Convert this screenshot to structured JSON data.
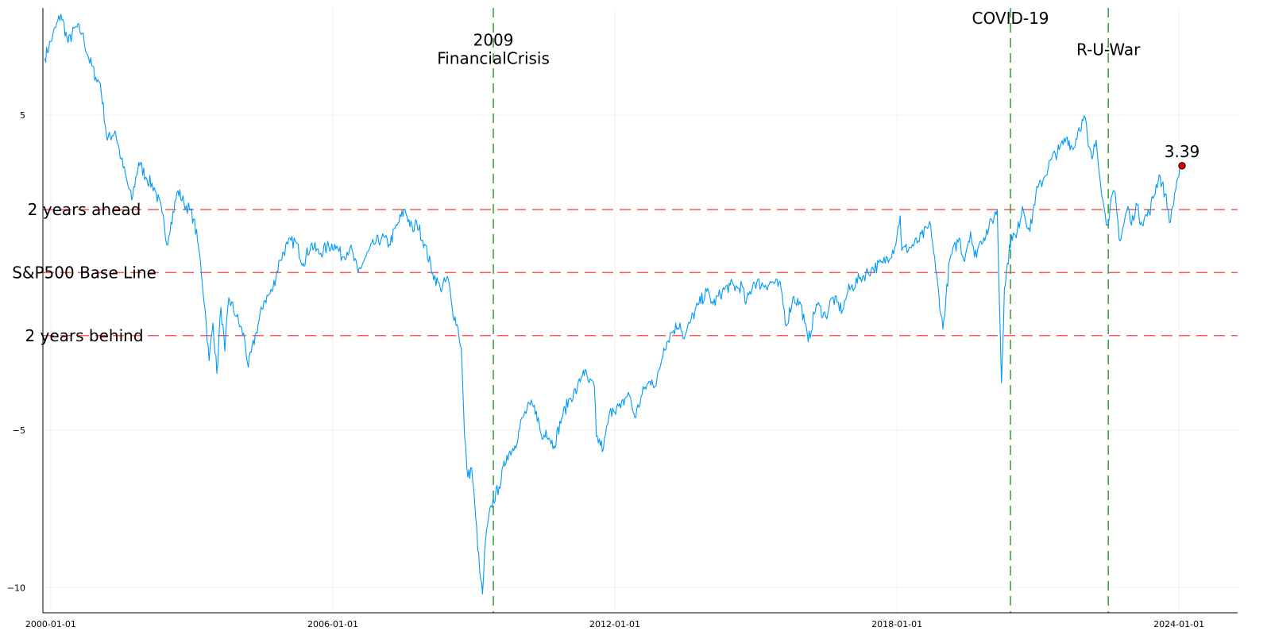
{
  "chart_data": {
    "type": "line",
    "title": "",
    "xlabel": "",
    "ylabel": "",
    "grid": true,
    "legend": "none",
    "xlim": [
      "1999-11-01",
      "2025-04-01"
    ],
    "ylim": [
      -10.8,
      8.4
    ],
    "x_ticks": [
      "2000-01-01",
      "2006-01-01",
      "2012-01-01",
      "2018-01-01",
      "2024-01-01"
    ],
    "y_ticks": [
      {
        "value": 5,
        "label": "5"
      },
      {
        "value": -5,
        "label": "−5"
      },
      {
        "value": -10,
        "label": "−10"
      }
    ],
    "series": [
      {
        "color": "#009af9",
        "points": [
          [
            "1999-11-15",
            6.8
          ],
          [
            "2000-01-15",
            7.5
          ],
          [
            "2000-03-20",
            8.2
          ],
          [
            "2000-05-15",
            7.3
          ],
          [
            "2000-07-15",
            7.8
          ],
          [
            "2000-09-01",
            7.6
          ],
          [
            "2000-10-15",
            6.9
          ],
          [
            "2000-12-15",
            6.2
          ],
          [
            "2001-01-20",
            6.0
          ],
          [
            "2001-03-15",
            4.2
          ],
          [
            "2001-05-15",
            4.5
          ],
          [
            "2001-07-01",
            3.6
          ],
          [
            "2001-09-21",
            2.3
          ],
          [
            "2001-11-15",
            3.5
          ],
          [
            "2002-01-15",
            3.0
          ],
          [
            "2002-03-15",
            2.7
          ],
          [
            "2002-05-15",
            1.9
          ],
          [
            "2002-06-20",
            0.9
          ],
          [
            "2002-07-23",
            1.6
          ],
          [
            "2002-09-15",
            2.6
          ],
          [
            "2002-11-01",
            2.2
          ],
          [
            "2002-12-15",
            2.0
          ],
          [
            "2003-01-15",
            1.7
          ],
          [
            "2003-02-15",
            1.0
          ],
          [
            "2003-03-10",
            0.3
          ],
          [
            "2003-04-15",
            -1.2
          ],
          [
            "2003-05-15",
            -2.8
          ],
          [
            "2003-06-15",
            -1.6
          ],
          [
            "2003-07-15",
            -3.2
          ],
          [
            "2003-08-15",
            -1.1
          ],
          [
            "2003-09-15",
            -2.5
          ],
          [
            "2003-10-15",
            -0.8
          ],
          [
            "2003-12-15",
            -1.4
          ],
          [
            "2004-02-15",
            -2.1
          ],
          [
            "2004-03-15",
            -3.0
          ],
          [
            "2004-05-15",
            -1.9
          ],
          [
            "2004-07-15",
            -0.9
          ],
          [
            "2004-09-15",
            -0.6
          ],
          [
            "2004-11-15",
            0.4
          ],
          [
            "2005-01-15",
            0.9
          ],
          [
            "2005-03-15",
            1.0
          ],
          [
            "2005-05-15",
            0.3
          ],
          [
            "2005-07-15",
            0.9
          ],
          [
            "2005-09-15",
            0.6
          ],
          [
            "2005-11-15",
            0.8
          ],
          [
            "2006-01-15",
            0.9
          ],
          [
            "2006-03-15",
            0.5
          ],
          [
            "2006-05-15",
            0.8
          ],
          [
            "2006-07-15",
            0.0
          ],
          [
            "2006-09-15",
            0.5
          ],
          [
            "2006-11-15",
            0.9
          ],
          [
            "2007-01-15",
            1.1
          ],
          [
            "2007-03-15",
            0.9
          ],
          [
            "2007-05-15",
            1.5
          ],
          [
            "2007-07-15",
            2.0
          ],
          [
            "2007-09-15",
            1.3
          ],
          [
            "2007-10-15",
            1.6
          ],
          [
            "2007-12-15",
            0.9
          ],
          [
            "2008-02-15",
            0.0
          ],
          [
            "2008-04-15",
            -0.5
          ],
          [
            "2008-06-15",
            -0.2
          ],
          [
            "2008-07-15",
            -1.1
          ],
          [
            "2008-09-01",
            -1.8
          ],
          [
            "2008-09-25",
            -2.4
          ],
          [
            "2008-10-20",
            -5.2
          ],
          [
            "2008-11-15",
            -6.5
          ],
          [
            "2008-12-15",
            -6.2
          ],
          [
            "2009-01-15",
            -7.8
          ],
          [
            "2009-02-15",
            -9.5
          ],
          [
            "2009-03-09",
            -10.2
          ],
          [
            "2009-04-01",
            -8.5
          ],
          [
            "2009-05-15",
            -7.4
          ],
          [
            "2009-07-15",
            -6.8
          ],
          [
            "2009-09-15",
            -5.8
          ],
          [
            "2009-11-15",
            -5.5
          ],
          [
            "2010-01-15",
            -4.6
          ],
          [
            "2010-03-15",
            -4.2
          ],
          [
            "2010-05-01",
            -4.4
          ],
          [
            "2010-06-15",
            -5.3
          ],
          [
            "2010-07-15",
            -5.0
          ],
          [
            "2010-09-15",
            -5.5
          ],
          [
            "2010-11-15",
            -4.6
          ],
          [
            "2011-01-15",
            -4.0
          ],
          [
            "2011-03-15",
            -3.7
          ],
          [
            "2011-05-01",
            -3.1
          ],
          [
            "2011-06-15",
            -3.5
          ],
          [
            "2011-07-25",
            -3.6
          ],
          [
            "2011-08-10",
            -5.2
          ],
          [
            "2011-10-04",
            -5.6
          ],
          [
            "2011-11-15",
            -4.6
          ],
          [
            "2011-12-15",
            -4.3
          ],
          [
            "2012-02-15",
            -4.3
          ],
          [
            "2012-04-15",
            -3.8
          ],
          [
            "2012-06-04",
            -4.6
          ],
          [
            "2012-08-15",
            -3.7
          ],
          [
            "2012-10-15",
            -3.4
          ],
          [
            "2012-11-15",
            -3.6
          ],
          [
            "2013-01-15",
            -2.4
          ],
          [
            "2013-03-15",
            -1.9
          ],
          [
            "2013-05-21",
            -1.6
          ],
          [
            "2013-06-24",
            -2.1
          ],
          [
            "2013-08-15",
            -1.5
          ],
          [
            "2013-10-15",
            -1.0
          ],
          [
            "2013-12-15",
            -0.6
          ],
          [
            "2014-02-03",
            -1.0
          ],
          [
            "2014-04-15",
            -0.6
          ],
          [
            "2014-06-15",
            -0.4
          ],
          [
            "2014-08-15",
            -0.5
          ],
          [
            "2014-09-15",
            -0.4
          ],
          [
            "2014-10-15",
            -1.0
          ],
          [
            "2014-12-15",
            -0.3
          ],
          [
            "2015-03-15",
            -0.4
          ],
          [
            "2015-05-15",
            -0.3
          ],
          [
            "2015-07-15",
            -0.5
          ],
          [
            "2015-08-25",
            -1.7
          ],
          [
            "2015-10-15",
            -0.8
          ],
          [
            "2015-12-15",
            -1.0
          ],
          [
            "2016-01-15",
            -1.6
          ],
          [
            "2016-02-11",
            -2.2
          ],
          [
            "2016-04-15",
            -1.0
          ],
          [
            "2016-06-27",
            -1.4
          ],
          [
            "2016-08-15",
            -0.8
          ],
          [
            "2016-11-04",
            -1.2
          ],
          [
            "2016-12-15",
            -0.6
          ],
          [
            "2017-03-15",
            -0.2
          ],
          [
            "2017-06-15",
            0.1
          ],
          [
            "2017-09-15",
            0.3
          ],
          [
            "2017-12-15",
            0.8
          ],
          [
            "2018-01-26",
            1.8
          ],
          [
            "2018-02-08",
            0.7
          ],
          [
            "2018-04-15",
            0.8
          ],
          [
            "2018-06-15",
            1.0
          ],
          [
            "2018-09-20",
            1.5
          ],
          [
            "2018-10-29",
            0.1
          ],
          [
            "2018-12-24",
            -1.8
          ],
          [
            "2019-02-15",
            0.4
          ],
          [
            "2019-04-30",
            1.1
          ],
          [
            "2019-06-03",
            0.4
          ],
          [
            "2019-07-26",
            1.3
          ],
          [
            "2019-08-26",
            0.5
          ],
          [
            "2019-10-15",
            1.0
          ],
          [
            "2019-12-15",
            1.4
          ],
          [
            "2020-02-19",
            2.0
          ],
          [
            "2020-03-23",
            -3.5
          ],
          [
            "2020-04-15",
            -0.5
          ],
          [
            "2020-06-08",
            1.2
          ],
          [
            "2020-07-15",
            1.1
          ],
          [
            "2020-09-02",
            2.1
          ],
          [
            "2020-10-30",
            1.3
          ],
          [
            "2020-12-15",
            2.5
          ],
          [
            "2021-02-15",
            3.0
          ],
          [
            "2021-04-15",
            3.6
          ],
          [
            "2021-06-15",
            3.9
          ],
          [
            "2021-08-15",
            4.3
          ],
          [
            "2021-09-30",
            3.9
          ],
          [
            "2021-11-15",
            4.6
          ],
          [
            "2022-01-03",
            4.9
          ],
          [
            "2022-01-27",
            4.0
          ],
          [
            "2022-02-24",
            3.6
          ],
          [
            "2022-03-29",
            4.2
          ],
          [
            "2022-05-20",
            2.3
          ],
          [
            "2022-06-16",
            1.5
          ],
          [
            "2022-08-16",
            2.6
          ],
          [
            "2022-09-30",
            1.0
          ],
          [
            "2022-11-30",
            2.1
          ],
          [
            "2022-12-28",
            1.5
          ],
          [
            "2023-02-02",
            2.2
          ],
          [
            "2023-03-13",
            1.6
          ],
          [
            "2023-05-15",
            1.9
          ],
          [
            "2023-07-31",
            3.1
          ],
          [
            "2023-09-15",
            2.5
          ],
          [
            "2023-10-27",
            1.6
          ],
          [
            "2023-12-15",
            2.9
          ],
          [
            "2024-01-25",
            3.39
          ]
        ]
      }
    ],
    "hlines": [
      {
        "value": 2.0,
        "label": "2 years ahead",
        "color": "#ff3b3b"
      },
      {
        "value": 0.0,
        "label": "S&P500 Base Line",
        "color": "#ff3b3b"
      },
      {
        "value": -2.0,
        "label": "2 years behind",
        "color": "#ff3b3b"
      }
    ],
    "vlines": [
      {
        "x": "2009-06-01",
        "label_lines": [
          "2009",
          "FinancialCrisis"
        ],
        "label_y": 7.2,
        "color": "#3a9a3a"
      },
      {
        "x": "2020-06-01",
        "label_lines": [
          "COVID-19"
        ],
        "label_y": 7.9,
        "color": "#3a9a3a"
      },
      {
        "x": "2022-07-01",
        "label_lines": [
          "R-U-War"
        ],
        "label_y": 6.9,
        "color": "#3a9a3a"
      }
    ],
    "marker": {
      "x": "2024-01-25",
      "y": 3.39,
      "label": "3.39",
      "color": "#e8000b"
    }
  }
}
